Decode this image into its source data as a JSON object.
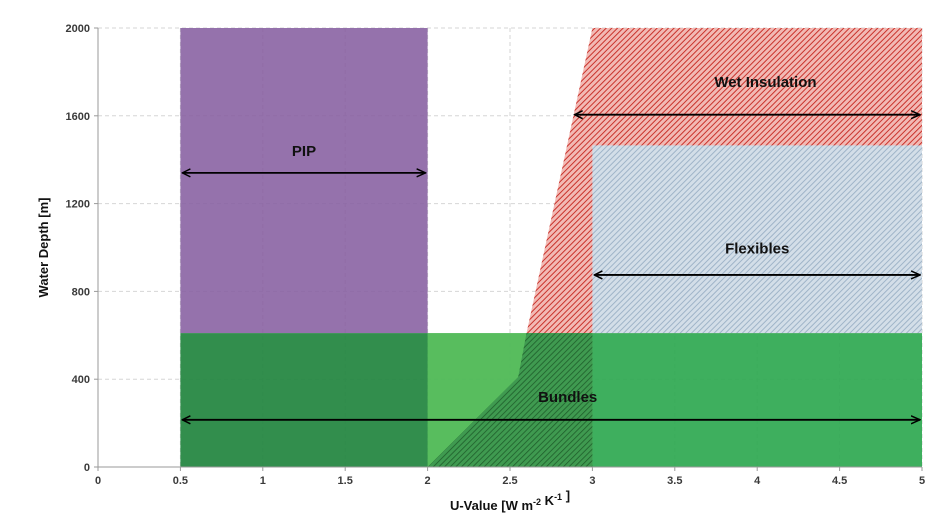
{
  "chart_data": {
    "type": "area",
    "xlabel": "U-Value [W m-2 K-1 ]",
    "ylabel": "Water Depth [m]",
    "xlim": [
      0,
      5
    ],
    "ylim": [
      0,
      2000
    ],
    "x_ticks": [
      0,
      0.5,
      1,
      1.5,
      2,
      2.5,
      3,
      3.5,
      4,
      4.5,
      5
    ],
    "y_ticks": [
      0,
      400,
      800,
      1200,
      1600,
      2000
    ],
    "grid": true,
    "regions": [
      {
        "name": "PIP",
        "color": "#9575ab",
        "fill": "solid",
        "polygon": [
          [
            0.5,
            610
          ],
          [
            2.0,
            610
          ],
          [
            2.0,
            2000
          ],
          [
            0.5,
            2000
          ]
        ],
        "arrow": {
          "x": [
            0.5,
            2.0
          ],
          "y": 1340
        },
        "label_pos": [
          1.25,
          1440
        ]
      },
      {
        "name": "Wet Insulation",
        "color": "#d9534f",
        "fill": "hatched",
        "polygon": [
          [
            2.0,
            0
          ],
          [
            2.55,
            410
          ],
          [
            2.6,
            610
          ],
          [
            3.0,
            2000
          ],
          [
            5.0,
            2000
          ],
          [
            5.0,
            610
          ],
          [
            3.0,
            610
          ],
          [
            3.0,
            0
          ]
        ],
        "arrow": {
          "x": [
            2.88,
            5.0
          ],
          "y": 1605
        },
        "label_pos": [
          4.05,
          1755
        ]
      },
      {
        "name": "Flexibles",
        "color": "#b4c6d6",
        "fill": "hatched",
        "polygon": [
          [
            3.0,
            610
          ],
          [
            5.0,
            610
          ],
          [
            5.0,
            1465
          ],
          [
            3.0,
            1465
          ]
        ],
        "arrow": {
          "x": [
            3.0,
            5.0
          ],
          "y": 875
        },
        "label_pos": [
          4.0,
          995
        ]
      },
      {
        "name": "Bundles",
        "color": "#2fa84f",
        "fill": "solid",
        "polygon": [
          [
            0.5,
            0
          ],
          [
            5.0,
            0
          ],
          [
            5.0,
            610
          ],
          [
            0.5,
            610
          ]
        ],
        "arrow": {
          "x": [
            0.5,
            5.0
          ],
          "y": 215
        },
        "label_pos": [
          2.85,
          320
        ]
      }
    ]
  }
}
